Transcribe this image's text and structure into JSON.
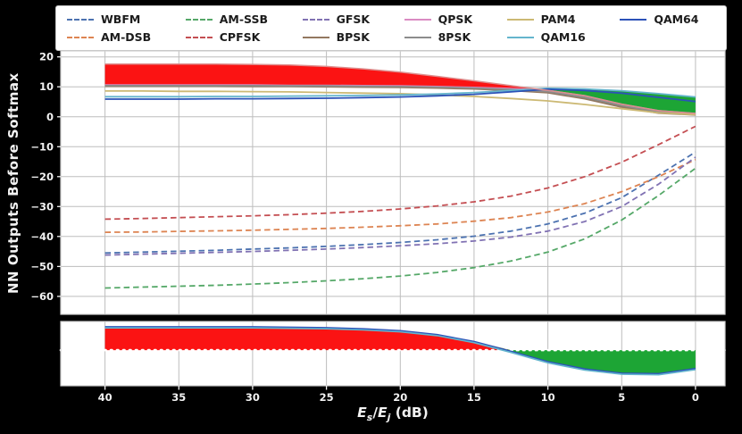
{
  "figure": {
    "background": "#000000",
    "axes_background": "#ffffff",
    "grid_color": "#bdbdbd",
    "spine_color": "#cfcfcf",
    "tick_color": "#f2f2f2",
    "red": "#fb1313",
    "green": "#1da535",
    "zero_line_color": "#ffffff"
  },
  "chart_data": {
    "type": "line",
    "ylabel": "NN Outputs Before Softmax",
    "xlabel_parts": {
      "e1": "E",
      "sub1": "s",
      "slash": "/",
      "e2": "E",
      "sub2": "j",
      "rest": " (dB)"
    },
    "xlim": [
      43,
      -2
    ],
    "x_ticks": [
      40,
      35,
      30,
      25,
      20,
      15,
      10,
      5,
      0
    ],
    "main": {
      "ylim": [
        -66,
        22
      ],
      "y_ticks": [
        -60,
        -50,
        -40,
        -30,
        -20,
        -10,
        0,
        10,
        20
      ]
    },
    "bottom": {
      "ylim": [
        -1.55,
        1.25
      ],
      "zero_line": 0
    },
    "x": [
      40,
      37.5,
      35,
      32.5,
      30,
      27.5,
      25,
      22.5,
      20,
      17.5,
      15,
      12.5,
      10,
      7.5,
      5,
      2.5,
      0
    ],
    "series": [
      {
        "name": "WBFM",
        "axis": "main",
        "dash": true,
        "color": "#4C72B0",
        "values": [
          -45.5,
          -45.2,
          -44.9,
          -44.6,
          -44.2,
          -43.8,
          -43.3,
          -42.7,
          -42.0,
          -41.1,
          -39.9,
          -38.2,
          -35.8,
          -32.2,
          -27.0,
          -19.5,
          -11.8
        ]
      },
      {
        "name": "AM-DSB",
        "axis": "main",
        "dash": true,
        "color": "#DD8452",
        "values": [
          -38.6,
          -38.5,
          -38.3,
          -38.1,
          -37.9,
          -37.6,
          -37.3,
          -36.9,
          -36.4,
          -35.8,
          -34.9,
          -33.7,
          -31.8,
          -29.0,
          -25.0,
          -20.0,
          -14.3
        ]
      },
      {
        "name": "AM-SSB",
        "axis": "main",
        "dash": true,
        "color": "#55A868",
        "values": [
          -57.2,
          -56.9,
          -56.6,
          -56.3,
          -55.9,
          -55.4,
          -54.8,
          -54.1,
          -53.2,
          -52.0,
          -50.4,
          -48.2,
          -45.2,
          -40.8,
          -34.5,
          -26.3,
          -17.2
        ]
      },
      {
        "name": "CPFSK",
        "axis": "main",
        "dash": true,
        "color": "#C44E52",
        "values": [
          -34.2,
          -34.0,
          -33.7,
          -33.4,
          -33.1,
          -32.7,
          -32.2,
          -31.6,
          -30.8,
          -29.8,
          -28.4,
          -26.5,
          -23.8,
          -20.0,
          -15.2,
          -9.3,
          -3.2
        ]
      },
      {
        "name": "GFSK",
        "axis": "main",
        "dash": true,
        "color": "#8172B3",
        "values": [
          -46.2,
          -45.9,
          -45.6,
          -45.3,
          -45.0,
          -44.6,
          -44.2,
          -43.7,
          -43.1,
          -42.4,
          -41.5,
          -40.2,
          -38.2,
          -35.0,
          -30.0,
          -22.5,
          -13.5
        ]
      },
      {
        "name": "BPSK",
        "axis": "main",
        "dash": false,
        "color": "#937860",
        "values": [
          10.2,
          10.2,
          10.2,
          10.2,
          10.1,
          10.1,
          10.0,
          9.9,
          9.8,
          9.6,
          9.3,
          8.8,
          8.0,
          6.0,
          3.2,
          1.2,
          0.6
        ]
      },
      {
        "name": "QPSK",
        "axis": "main",
        "dash": false,
        "color": "#DA8BC3",
        "values": [
          10.6,
          10.6,
          10.6,
          10.6,
          10.6,
          10.5,
          10.5,
          10.4,
          10.3,
          10.1,
          9.8,
          9.4,
          8.8,
          7.0,
          4.2,
          2.0,
          1.1
        ]
      },
      {
        "name": "8PSK",
        "axis": "main",
        "dash": false,
        "color": "#8C8C8C",
        "values": [
          10.4,
          10.4,
          10.4,
          10.4,
          10.4,
          10.3,
          10.3,
          10.2,
          10.1,
          9.9,
          9.6,
          9.1,
          8.4,
          6.5,
          3.7,
          1.6,
          0.9
        ]
      },
      {
        "name": "PAM4",
        "axis": "main",
        "dash": false,
        "color": "#CCB974",
        "values": [
          8.6,
          8.6,
          8.5,
          8.5,
          8.4,
          8.3,
          8.1,
          7.9,
          7.7,
          7.3,
          6.8,
          6.1,
          5.3,
          4.1,
          2.7,
          1.3,
          0.7
        ]
      },
      {
        "name": "QAM16",
        "axis": "main",
        "dash": false,
        "color": "#64B5CD",
        "values": [
          6.7,
          6.7,
          6.7,
          6.8,
          6.8,
          6.9,
          7.0,
          7.1,
          7.3,
          7.6,
          8.1,
          8.8,
          9.5,
          9.3,
          8.7,
          7.7,
          6.6
        ]
      },
      {
        "name": "QAM64",
        "axis": "main",
        "dash": false,
        "color": "#2c52b8",
        "values": [
          5.9,
          5.9,
          5.9,
          6.0,
          6.0,
          6.1,
          6.2,
          6.4,
          6.6,
          7.0,
          7.5,
          8.3,
          9.2,
          8.8,
          7.9,
          6.5,
          5.1
        ]
      },
      {
        "name": "envelope-upper",
        "axis": "main",
        "dash": false,
        "color": "#dd8e8e",
        "width": 1.5,
        "legend": false,
        "values": [
          17.6,
          17.6,
          17.6,
          17.6,
          17.5,
          17.3,
          16.8,
          16.0,
          14.9,
          13.5,
          12.0,
          10.4,
          8.8,
          7.0,
          4.2,
          2.0,
          1.1
        ]
      },
      {
        "name": "bottom-blue",
        "axis": "bottom",
        "dash": false,
        "color": "#2c52b8",
        "width": 1.6,
        "legend": false,
        "values": [
          1.02,
          1.02,
          1.02,
          1.02,
          1.02,
          1.0,
          0.98,
          0.93,
          0.85,
          0.68,
          0.38,
          -0.05,
          -0.5,
          -0.82,
          -1.0,
          -1.02,
          -0.8
        ]
      },
      {
        "name": "bottom-cyan",
        "axis": "bottom",
        "dash": false,
        "color": "#64B5CD",
        "width": 1.6,
        "legend": false,
        "values": [
          0.97,
          0.97,
          0.97,
          0.97,
          0.97,
          0.95,
          0.93,
          0.88,
          0.8,
          0.63,
          0.33,
          -0.1,
          -0.55,
          -0.87,
          -1.05,
          -1.07,
          -0.85
        ]
      }
    ],
    "fills": [
      {
        "name": "red-region-main",
        "axis": "main",
        "upper": "envelope-upper",
        "lower": "QPSK",
        "color": "red"
      },
      {
        "name": "green-region-main",
        "axis": "main",
        "upper": "QAM16",
        "lower": "BPSK",
        "color": "green"
      },
      {
        "name": "red-region-bottom",
        "axis": "bottom",
        "upper": "bottom-blue",
        "lower": "zero",
        "color": "red"
      },
      {
        "name": "green-region-bottom",
        "axis": "bottom",
        "upper": "zero",
        "lower": "bottom-blue",
        "color": "green"
      }
    ]
  }
}
